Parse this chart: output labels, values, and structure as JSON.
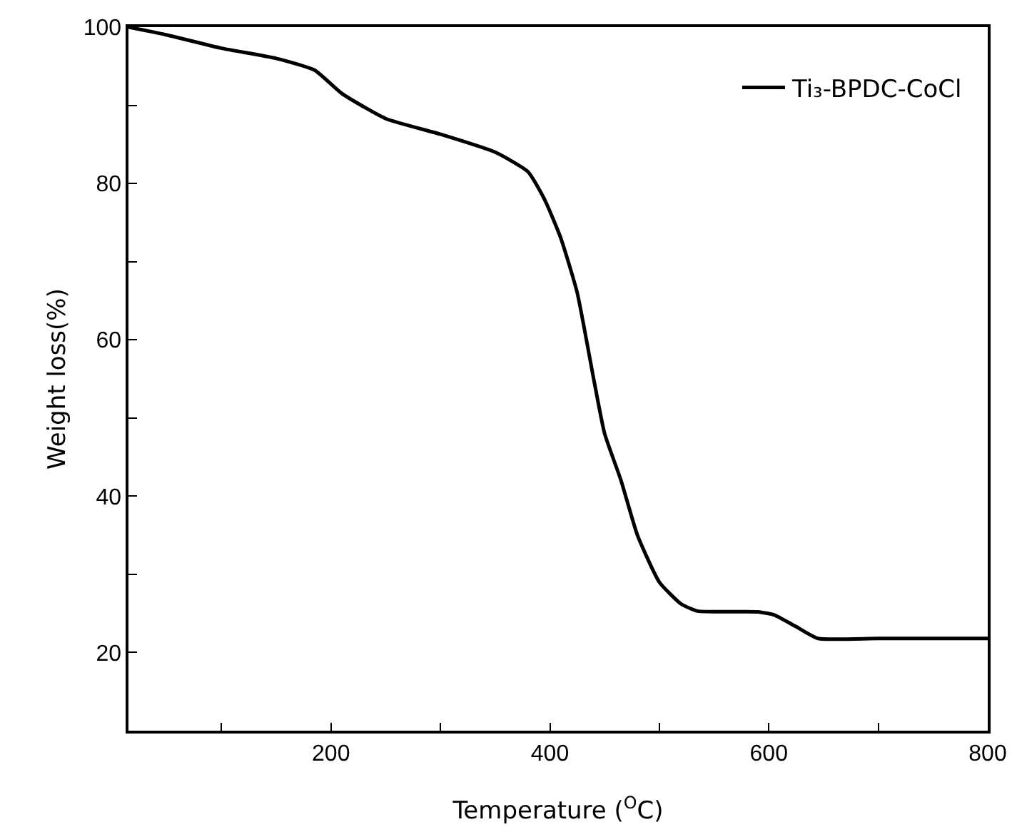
{
  "chart_data": {
    "type": "line",
    "xlabel": "Temperature ($^{O}$C)",
    "ylabel": "Weight loss(%)",
    "xlim": [
      15,
      800
    ],
    "ylim": [
      10,
      100
    ],
    "xticks": [
      {
        "value": 100,
        "label": null
      },
      200,
      {
        "value": 300,
        "label": null
      },
      400,
      {
        "value": 500,
        "label": null
      },
      600,
      {
        "value": 700,
        "label": null
      },
      800
    ],
    "yticks": [
      20,
      {
        "value": 30,
        "label": null
      },
      40,
      {
        "value": 50,
        "label": null
      },
      60,
      {
        "value": 70,
        "label": null
      },
      80,
      {
        "value": 90,
        "label": null
      },
      100
    ],
    "grid": false,
    "legend": "top right",
    "marker": "none",
    "line_style": "solid",
    "series": [
      {
        "name": "Ti₃-BPDC-CoCl",
        "color": "#000000",
        "x": [
          15,
          50,
          100,
          150,
          185,
          210,
          250,
          300,
          350,
          380,
          395,
          410,
          425,
          440,
          450,
          465,
          480,
          500,
          520,
          535,
          590,
          605,
          625,
          645,
          700,
          800
        ],
        "values": [
          100,
          99,
          97.3,
          96,
          94.5,
          91.5,
          88.3,
          86.3,
          84,
          81.5,
          78,
          73,
          66,
          55,
          48,
          42,
          35,
          29,
          26.2,
          25.3,
          25.2,
          24.8,
          23.3,
          21.8,
          21.8,
          21.8
        ]
      }
    ]
  }
}
